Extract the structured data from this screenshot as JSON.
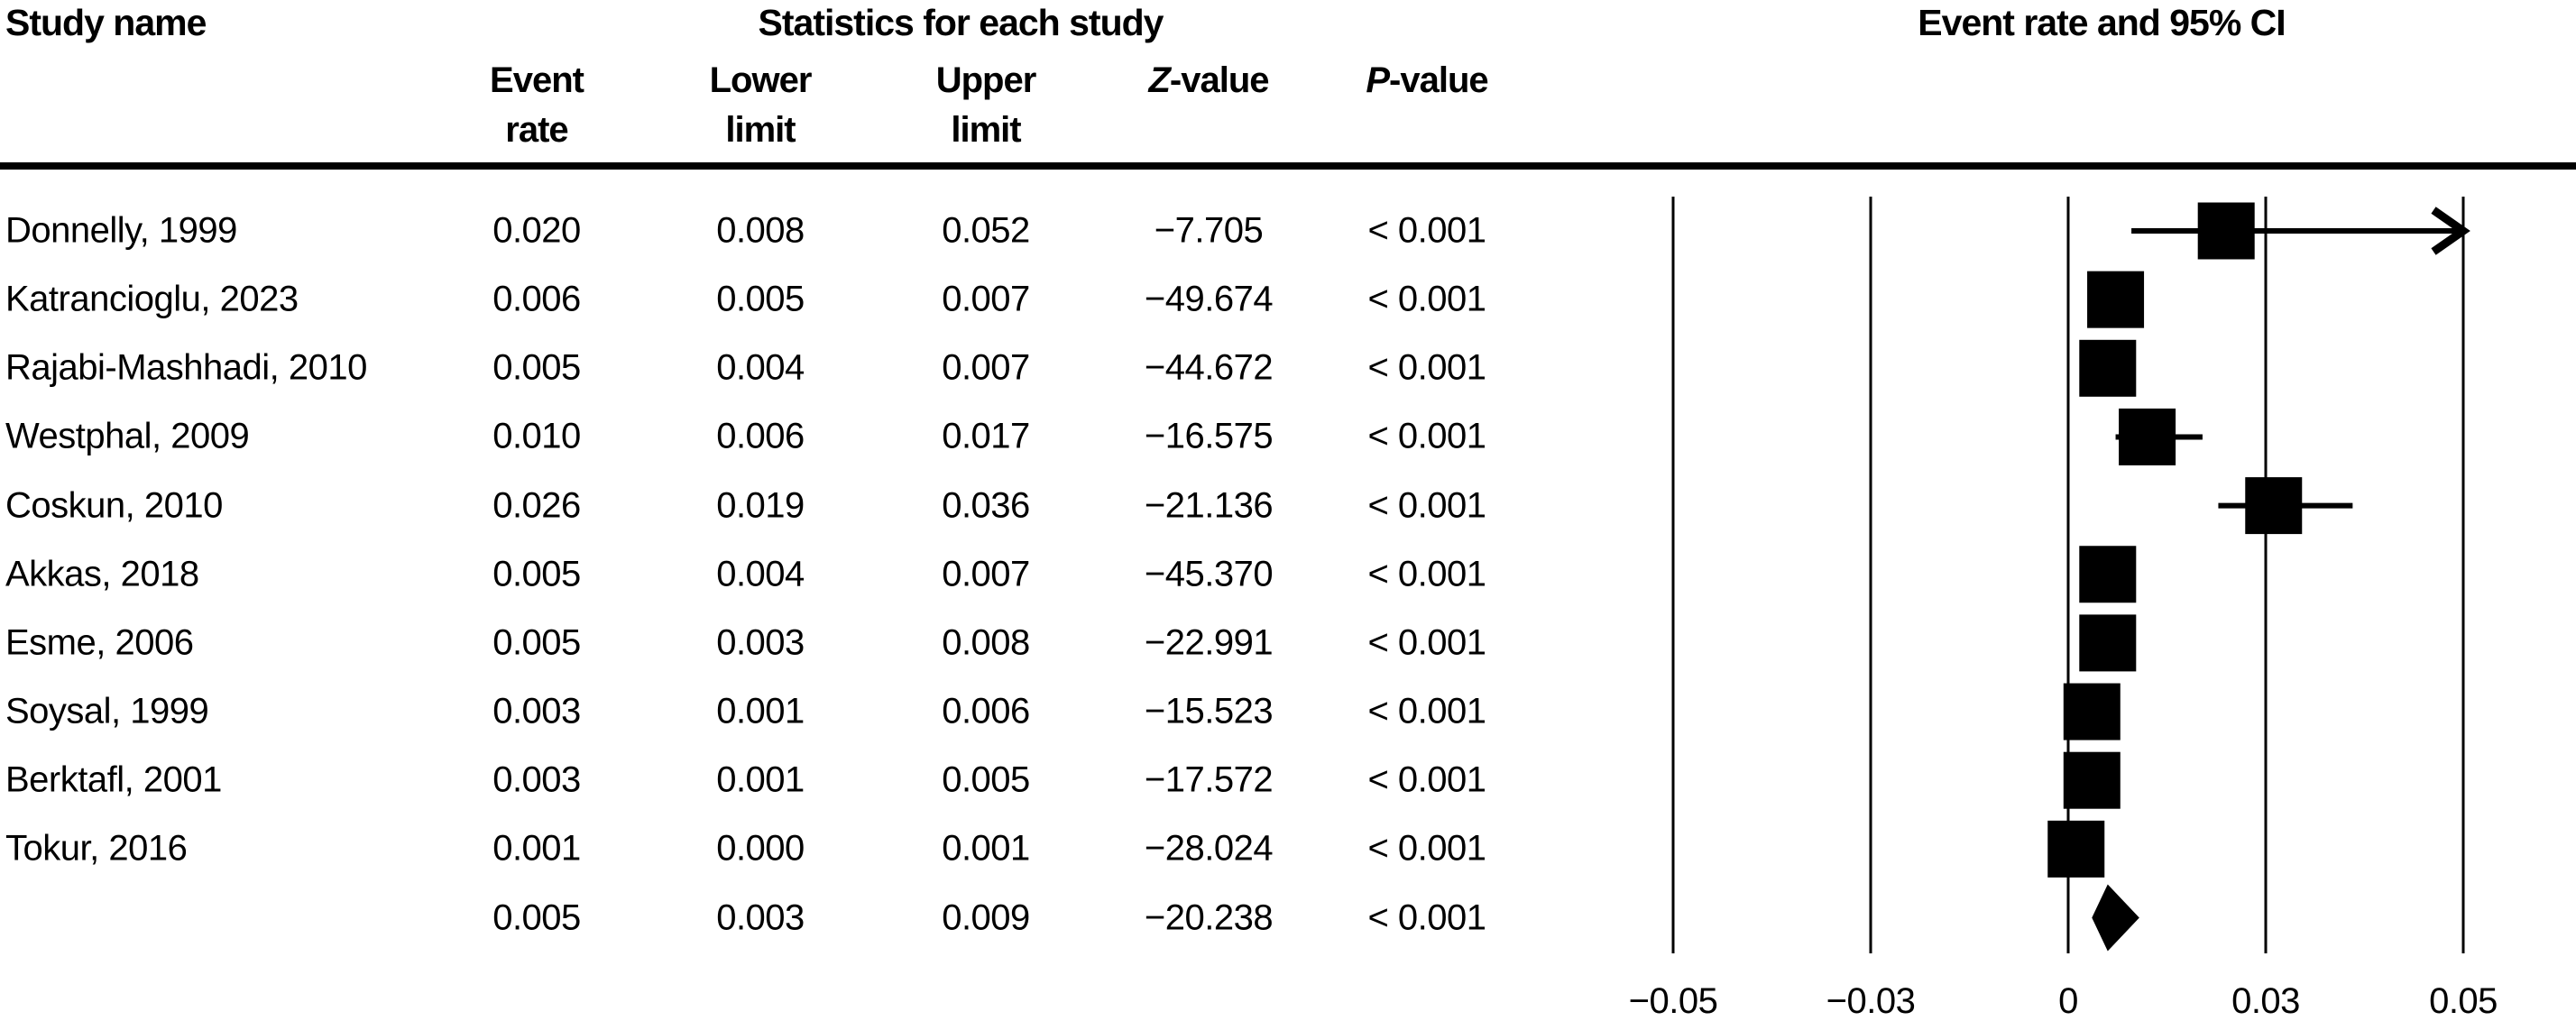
{
  "chart_data": {
    "type": "forest",
    "title_left": "Study name",
    "title_stats": "Statistics for each study",
    "title_plot": "Event rate and 95% CI",
    "columns": [
      {
        "id": "event_rate",
        "line1": "Event",
        "line2": "rate",
        "italic_first": false
      },
      {
        "id": "lower",
        "line1": "Lower",
        "line2": "limit",
        "italic_first": false
      },
      {
        "id": "upper",
        "line1": "Upper",
        "line2": "limit",
        "italic_first": false
      },
      {
        "id": "z",
        "line1": "Z-value",
        "line2": "",
        "italic_first": true
      },
      {
        "id": "p",
        "line1": "P-value",
        "line2": "",
        "italic_first": true
      }
    ],
    "axis": {
      "min": -0.05,
      "max": 0.05,
      "ticks": [
        "−0.05",
        "−0.03",
        "0",
        "0.03",
        "0.05"
      ],
      "grid": "vertical-lines",
      "scale": "linear"
    },
    "studies": [
      {
        "name": "Donnelly, 1999",
        "event_rate": "0.020",
        "lower": "0.008",
        "upper": "0.052",
        "z": "−7.705",
        "p": "< 0.001",
        "rate": 0.02,
        "lo": 0.008,
        "hi": 0.052,
        "clipped_right": true
      },
      {
        "name": "Katrancioglu, 2023",
        "event_rate": "0.006",
        "lower": "0.005",
        "upper": "0.007",
        "z": "−49.674",
        "p": "< 0.001",
        "rate": 0.006,
        "lo": 0.005,
        "hi": 0.007,
        "clipped_right": false
      },
      {
        "name": "Rajabi-Mashhadi, 2010",
        "event_rate": "0.005",
        "lower": "0.004",
        "upper": "0.007",
        "z": "−44.672",
        "p": "< 0.001",
        "rate": 0.005,
        "lo": 0.004,
        "hi": 0.007,
        "clipped_right": false
      },
      {
        "name": "Westphal, 2009",
        "event_rate": "0.010",
        "lower": "0.006",
        "upper": "0.017",
        "z": "−16.575",
        "p": "< 0.001",
        "rate": 0.01,
        "lo": 0.006,
        "hi": 0.017,
        "clipped_right": false
      },
      {
        "name": "Coskun, 2010",
        "event_rate": "0.026",
        "lower": "0.019",
        "upper": "0.036",
        "z": "−21.136",
        "p": "< 0.001",
        "rate": 0.026,
        "lo": 0.019,
        "hi": 0.036,
        "clipped_right": false
      },
      {
        "name": "Akkas, 2018",
        "event_rate": "0.005",
        "lower": "0.004",
        "upper": "0.007",
        "z": "−45.370",
        "p": "< 0.001",
        "rate": 0.005,
        "lo": 0.004,
        "hi": 0.007,
        "clipped_right": false
      },
      {
        "name": "Esme, 2006",
        "event_rate": "0.005",
        "lower": "0.003",
        "upper": "0.008",
        "z": "−22.991",
        "p": "< 0.001",
        "rate": 0.005,
        "lo": 0.003,
        "hi": 0.008,
        "clipped_right": false
      },
      {
        "name": "Soysal, 1999",
        "event_rate": "0.003",
        "lower": "0.001",
        "upper": "0.006",
        "z": "−15.523",
        "p": "< 0.001",
        "rate": 0.003,
        "lo": 0.001,
        "hi": 0.006,
        "clipped_right": false
      },
      {
        "name": "Berktafl, 2001",
        "event_rate": "0.003",
        "lower": "0.001",
        "upper": "0.005",
        "z": "−17.572",
        "p": "< 0.001",
        "rate": 0.003,
        "lo": 0.001,
        "hi": 0.005,
        "clipped_right": false
      },
      {
        "name": "Tokur, 2016",
        "event_rate": "0.001",
        "lower": "0.000",
        "upper": "0.001",
        "z": "−28.024",
        "p": "< 0.001",
        "rate": 0.001,
        "lo": 0.0,
        "hi": 0.001,
        "clipped_right": false
      }
    ],
    "summary": {
      "name": "",
      "event_rate": "0.005",
      "lower": "0.003",
      "upper": "0.009",
      "z": "−20.238",
      "p": "< 0.001",
      "rate": 0.005,
      "lo": 0.003,
      "hi": 0.009,
      "marker": "diamond"
    },
    "colors": {
      "foreground": "#000000",
      "background": "#ffffff"
    }
  }
}
